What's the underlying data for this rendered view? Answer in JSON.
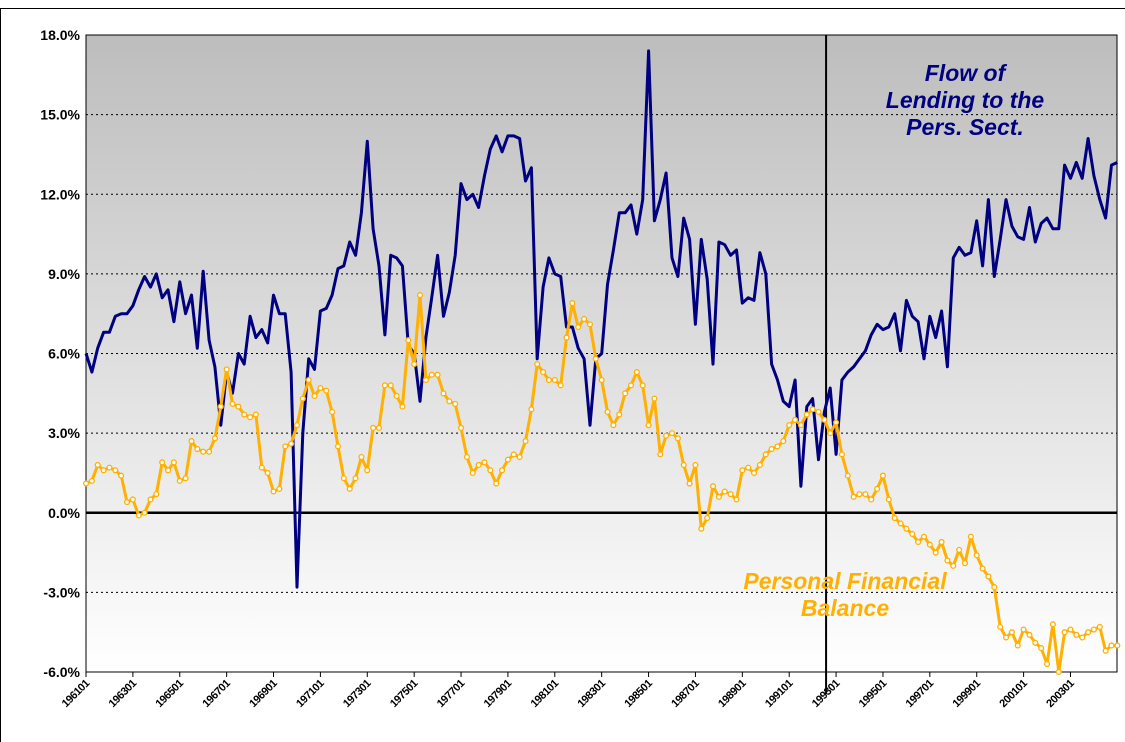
{
  "chart_data": {
    "type": "line",
    "categories": [
      "196101",
      null,
      null,
      null,
      null,
      null,
      null,
      null,
      "196301",
      null,
      null,
      null,
      null,
      null,
      null,
      null,
      "196501",
      null,
      null,
      null,
      null,
      null,
      null,
      null,
      "196701",
      null,
      null,
      null,
      null,
      null,
      null,
      null,
      "196901",
      null,
      null,
      null,
      null,
      null,
      null,
      null,
      "197101",
      null,
      null,
      null,
      null,
      null,
      null,
      null,
      "197301",
      null,
      null,
      null,
      null,
      null,
      null,
      null,
      "197501",
      null,
      null,
      null,
      null,
      null,
      null,
      null,
      "197701",
      null,
      null,
      null,
      null,
      null,
      null,
      null,
      "197901",
      null,
      null,
      null,
      null,
      null,
      null,
      null,
      "198101",
      null,
      null,
      null,
      null,
      null,
      null,
      null,
      "198301",
      null,
      null,
      null,
      null,
      null,
      null,
      null,
      "198501",
      null,
      null,
      null,
      null,
      null,
      null,
      null,
      "198701",
      null,
      null,
      null,
      null,
      null,
      null,
      null,
      "198901",
      null,
      null,
      null,
      null,
      null,
      null,
      null,
      "199101",
      null,
      null,
      null,
      null,
      null,
      null,
      null,
      "199301",
      null,
      null,
      null,
      null,
      null,
      null,
      null,
      "199501",
      null,
      null,
      null,
      null,
      null,
      null,
      null,
      "199701",
      null,
      null,
      null,
      null,
      null,
      null,
      null,
      "199901",
      null,
      null,
      null,
      null,
      null,
      null,
      null,
      "200101",
      null,
      null,
      null,
      null,
      null,
      null,
      null,
      "200301",
      null,
      null,
      null,
      null,
      null,
      null,
      null,
      null
    ],
    "series": [
      {
        "name": "Flow of Lending to the Pers. Sect.",
        "color": "#000080",
        "markers": false,
        "values": [
          6.0,
          5.3,
          6.2,
          6.8,
          6.8,
          7.4,
          7.5,
          7.5,
          7.8,
          8.4,
          8.9,
          8.5,
          9.0,
          8.1,
          8.4,
          7.2,
          8.7,
          7.5,
          8.2,
          6.2,
          9.1,
          6.5,
          5.5,
          3.3,
          5.3,
          4.5,
          6.0,
          5.6,
          7.4,
          6.6,
          6.9,
          6.4,
          8.2,
          7.5,
          7.5,
          5.3,
          -2.8,
          3.0,
          5.8,
          5.4,
          7.6,
          7.7,
          8.2,
          9.2,
          9.3,
          10.2,
          9.7,
          11.3,
          14.0,
          10.7,
          9.3,
          6.7,
          9.7,
          9.6,
          9.3,
          6.3,
          6.0,
          4.2,
          6.6,
          8.1,
          9.7,
          7.4,
          8.3,
          9.7,
          12.4,
          11.8,
          12.0,
          11.5,
          12.7,
          13.7,
          14.2,
          13.6,
          14.2,
          14.2,
          14.1,
          12.5,
          13.0,
          5.8,
          8.5,
          9.6,
          9.0,
          8.9,
          7.0,
          7.0,
          6.2,
          5.8,
          3.3,
          5.8,
          6.0,
          8.6,
          9.9,
          11.3,
          11.3,
          11.6,
          10.5,
          11.8,
          17.4,
          11.0,
          11.8,
          12.8,
          9.6,
          8.9,
          11.1,
          10.3,
          7.1,
          10.3,
          8.8,
          5.6,
          10.2,
          10.1,
          9.7,
          9.9,
          7.9,
          8.1,
          8.0,
          9.8,
          9.0,
          5.6,
          5.0,
          4.2,
          4.0,
          5.0,
          1.0,
          4.0,
          4.3,
          2.0,
          3.8,
          4.7,
          2.2,
          5.0,
          5.3,
          5.5,
          5.8,
          6.1,
          6.7,
          7.1,
          6.9,
          7.0,
          7.5,
          6.1,
          8.0,
          7.4,
          7.2,
          5.8,
          7.4,
          6.6,
          7.6,
          5.5,
          9.6,
          10.0,
          9.7,
          9.8,
          11.0,
          9.3,
          11.8,
          8.9,
          10.3,
          11.8,
          10.8,
          10.4,
          10.3,
          11.5,
          10.2,
          10.9,
          11.1,
          10.7,
          10.7,
          13.1,
          12.6,
          13.2,
          12.6,
          14.1,
          12.7,
          11.8,
          11.1,
          13.1,
          13.2
        ]
      },
      {
        "name": "Personal Financial Balance",
        "color": "#ffb000",
        "markers": true,
        "values": [
          1.1,
          1.2,
          1.8,
          1.6,
          1.7,
          1.6,
          1.4,
          0.4,
          0.5,
          -0.1,
          0.0,
          0.5,
          0.7,
          1.9,
          1.6,
          1.9,
          1.2,
          1.3,
          2.7,
          2.4,
          2.3,
          2.3,
          2.8,
          4.0,
          5.4,
          4.1,
          4.0,
          3.7,
          3.6,
          3.7,
          1.7,
          1.5,
          0.8,
          0.9,
          2.5,
          2.6,
          3.3,
          4.3,
          5.0,
          4.4,
          4.7,
          4.6,
          3.8,
          2.5,
          1.3,
          0.9,
          1.3,
          2.1,
          1.6,
          3.2,
          3.2,
          4.8,
          4.8,
          4.4,
          4.0,
          6.5,
          5.6,
          8.2,
          5.0,
          5.2,
          5.2,
          4.5,
          4.2,
          4.1,
          3.2,
          2.1,
          1.5,
          1.8,
          1.9,
          1.6,
          1.1,
          1.6,
          2.0,
          2.2,
          2.1,
          2.7,
          3.9,
          5.6,
          5.3,
          5.0,
          5.0,
          4.8,
          6.6,
          7.9,
          7.0,
          7.3,
          7.1,
          5.8,
          5.0,
          3.8,
          3.3,
          3.7,
          4.5,
          4.8,
          5.3,
          4.8,
          3.3,
          4.3,
          2.2,
          2.9,
          3.0,
          2.8,
          1.8,
          1.1,
          1.8,
          -0.6,
          -0.2,
          1.0,
          0.6,
          0.8,
          0.7,
          0.5,
          1.6,
          1.7,
          1.5,
          1.8,
          2.2,
          2.4,
          2.5,
          2.7,
          3.3,
          3.5,
          3.3,
          3.7,
          3.9,
          3.8,
          3.5,
          3.0,
          3.4,
          2.2,
          1.4,
          0.6,
          0.7,
          0.7,
          0.5,
          0.9,
          1.4,
          0.5,
          -0.2,
          -0.4,
          -0.6,
          -0.8,
          -1.1,
          -0.9,
          -1.2,
          -1.5,
          -1.1,
          -1.8,
          -2.0,
          -1.4,
          -1.9,
          -0.9,
          -1.6,
          -2.1,
          -2.4,
          -2.8,
          -4.3,
          -4.7,
          -4.5,
          -5.0,
          -4.4,
          -4.6,
          -4.9,
          -5.1,
          -5.7,
          -4.2,
          -6.0,
          -4.5,
          -4.4,
          -4.6,
          -4.7,
          -4.5,
          -4.4,
          -4.3,
          -5.2,
          -5.0,
          -5.0
        ]
      }
    ],
    "ylim": [
      -6,
      18
    ],
    "yticks": [
      {
        "value": -6,
        "label": "-6.0%"
      },
      {
        "value": -3,
        "label": "-3.0%"
      },
      {
        "value": 0,
        "label": "0.0%"
      },
      {
        "value": 3,
        "label": "3.0%"
      },
      {
        "value": 6,
        "label": "6.0%"
      },
      {
        "value": 9,
        "label": "9.0%"
      },
      {
        "value": 12,
        "label": "12.0%"
      },
      {
        "value": 15,
        "label": "15.0%"
      },
      {
        "value": 18,
        "label": "18.0%"
      }
    ],
    "grid": true,
    "vertical_line": "199301"
  }
}
